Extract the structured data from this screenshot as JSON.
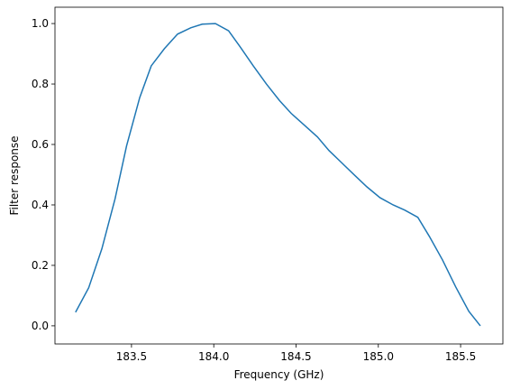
{
  "chart_data": {
    "type": "line",
    "xlabel": "Frequency (GHz)",
    "ylabel": "Filter response",
    "x": [
      183.16,
      183.24,
      183.32,
      183.4,
      183.47,
      183.55,
      183.62,
      183.7,
      183.78,
      183.86,
      183.93,
      184.01,
      184.09,
      184.16,
      184.24,
      184.32,
      184.4,
      184.47,
      184.55,
      184.63,
      184.7,
      184.78,
      184.86,
      184.93,
      185.01,
      185.09,
      185.16,
      185.24,
      185.31,
      185.39,
      185.47,
      185.55,
      185.62
    ],
    "values": [
      0.045,
      0.126,
      0.255,
      0.42,
      0.595,
      0.755,
      0.86,
      0.917,
      0.965,
      0.986,
      0.998,
      1.0,
      0.976,
      0.923,
      0.86,
      0.8,
      0.745,
      0.703,
      0.664,
      0.625,
      0.58,
      0.538,
      0.496,
      0.46,
      0.424,
      0.4,
      0.383,
      0.359,
      0.296,
      0.218,
      0.129,
      0.048,
      0.0
    ],
    "color": "#1f77b4",
    "xlim": [
      183.035,
      185.757
    ],
    "xticks": [
      183.5,
      {
        "value": 184,
        "label": "184.0"
      },
      184.5,
      {
        "value": 185,
        "label": "185.0"
      },
      185.5
    ],
    "ylim": [
      -0.06,
      1.054
    ],
    "yticks": [
      {
        "value": 0,
        "label": "0.0"
      },
      0.2,
      0.4,
      0.6,
      0.8,
      {
        "value": 1,
        "label": "1.0"
      }
    ],
    "grid": false
  }
}
